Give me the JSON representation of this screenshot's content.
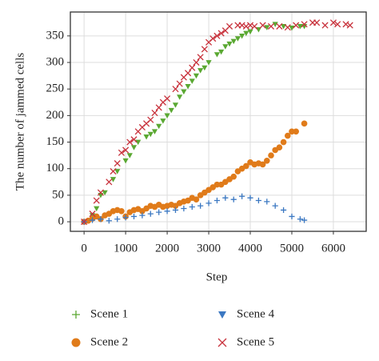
{
  "chart_data": {
    "type": "scatter",
    "xlabel": "Step",
    "ylabel": "The number of jammed cells",
    "xlim": [
      -330,
      6790
    ],
    "ylim": [
      -18,
      395
    ],
    "xticks": [
      0,
      1000,
      2000,
      3000,
      4000,
      5000,
      6000
    ],
    "yticks": [
      0,
      50,
      100,
      150,
      200,
      250,
      300,
      350
    ],
    "grid": true,
    "series": [
      {
        "name": "Scene 1",
        "color": "#5aa832",
        "marker": "triangle-down",
        "legend_marker": "plus",
        "x": [
          0,
          200,
          300,
          400,
          500,
          700,
          800,
          1000,
          1100,
          1200,
          1300,
          1500,
          1600,
          1700,
          1800,
          1900,
          2000,
          2100,
          2200,
          2300,
          2400,
          2500,
          2600,
          2700,
          2800,
          2900,
          3000,
          3200,
          3300,
          3400,
          3500,
          3600,
          3700,
          3800,
          3900,
          4000,
          4200,
          4400,
          4600,
          4800,
          5000,
          5200,
          5300
        ],
        "values": [
          0,
          12,
          25,
          50,
          55,
          80,
          95,
          115,
          125,
          140,
          150,
          160,
          165,
          170,
          180,
          190,
          200,
          210,
          220,
          235,
          245,
          255,
          265,
          275,
          285,
          290,
          300,
          315,
          320,
          330,
          335,
          340,
          345,
          350,
          355,
          358,
          362,
          366,
          372,
          368,
          365,
          368,
          368
        ]
      },
      {
        "name": "Scene 2",
        "color": "#e07b1a",
        "marker": "circle",
        "legend_marker": "circle",
        "x": [
          0,
          100,
          200,
          300,
          400,
          500,
          600,
          700,
          800,
          900,
          1000,
          1100,
          1200,
          1300,
          1400,
          1500,
          1600,
          1700,
          1800,
          1900,
          2000,
          2100,
          2200,
          2300,
          2400,
          2500,
          2600,
          2700,
          2800,
          2900,
          3000,
          3100,
          3200,
          3300,
          3400,
          3500,
          3600,
          3700,
          3800,
          3900,
          4000,
          4100,
          4200,
          4300,
          4400,
          4500,
          4600,
          4700,
          4800,
          4900,
          5000,
          5100,
          5300
        ],
        "values": [
          0,
          2,
          6,
          10,
          5,
          12,
          15,
          20,
          22,
          20,
          10,
          18,
          22,
          24,
          20,
          25,
          30,
          28,
          32,
          28,
          30,
          32,
          30,
          35,
          38,
          40,
          45,
          42,
          50,
          55,
          60,
          65,
          70,
          70,
          75,
          80,
          85,
          95,
          100,
          105,
          112,
          108,
          110,
          108,
          115,
          125,
          135,
          140,
          150,
          162,
          170,
          170,
          185
        ]
      },
      {
        "name": "Scene 4",
        "color": "#3b78c2",
        "marker": "plus",
        "legend_marker": "triangle-down",
        "x": [
          0,
          200,
          400,
          600,
          800,
          1000,
          1200,
          1400,
          1600,
          1800,
          2000,
          2200,
          2400,
          2600,
          2800,
          3000,
          3200,
          3400,
          3600,
          3800,
          4000,
          4200,
          4400,
          4600,
          4800,
          5000,
          5200,
          5300
        ],
        "values": [
          0,
          3,
          5,
          2,
          5,
          8,
          10,
          12,
          15,
          18,
          20,
          22,
          25,
          28,
          30,
          35,
          40,
          45,
          42,
          48,
          45,
          40,
          38,
          30,
          22,
          10,
          5,
          3
        ]
      },
      {
        "name": "Scene 5",
        "color": "#c8323c",
        "marker": "x",
        "legend_marker": "x",
        "x": [
          0,
          200,
          300,
          400,
          600,
          700,
          800,
          900,
          1000,
          1100,
          1200,
          1300,
          1400,
          1500,
          1600,
          1700,
          1800,
          1900,
          2000,
          2200,
          2300,
          2400,
          2500,
          2600,
          2700,
          2800,
          2900,
          3000,
          3100,
          3200,
          3300,
          3400,
          3500,
          3700,
          3800,
          3900,
          4000,
          4100,
          4300,
          4500,
          4700,
          4900,
          5100,
          5300,
          5500,
          5600,
          5800,
          6000,
          6100,
          6300,
          6400
        ],
        "values": [
          0,
          15,
          40,
          55,
          75,
          95,
          110,
          130,
          135,
          150,
          155,
          170,
          178,
          185,
          192,
          205,
          215,
          225,
          232,
          250,
          260,
          272,
          280,
          290,
          300,
          310,
          325,
          338,
          345,
          350,
          355,
          360,
          368,
          370,
          370,
          368,
          370,
          368,
          370,
          368,
          368,
          366,
          370,
          372,
          375,
          375,
          370,
          375,
          372,
          372,
          370
        ]
      }
    ]
  }
}
